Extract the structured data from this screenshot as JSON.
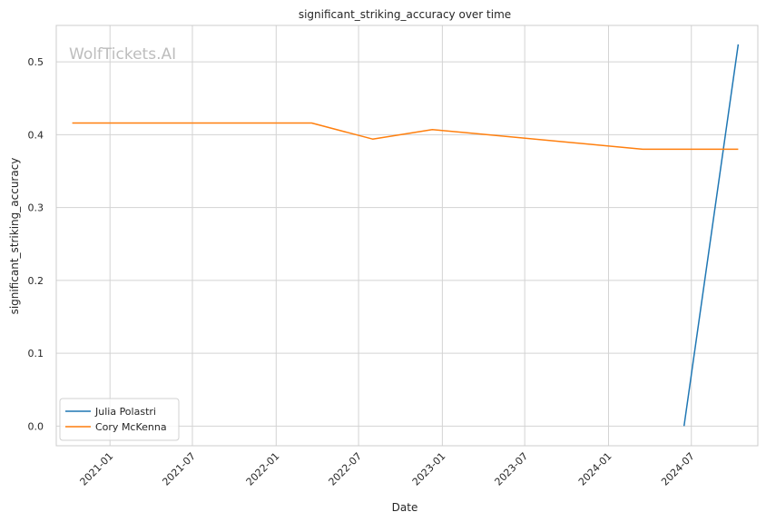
{
  "chart_data": {
    "type": "line",
    "title": "significant_striking_accuracy over time",
    "xlabel": "Date",
    "ylabel": "significant_striking_accuracy",
    "watermark": "WolfTickets.AI",
    "xlim": [
      "2020-09-05",
      "2024-11-24"
    ],
    "ylim": [
      -0.027,
      0.55
    ],
    "x_ticks": [
      "2021-01",
      "2021-07",
      "2022-01",
      "2022-07",
      "2023-01",
      "2023-07",
      "2024-01",
      "2024-07"
    ],
    "y_ticks": [
      0.0,
      0.1,
      0.2,
      0.3,
      0.4,
      0.5
    ],
    "grid": true,
    "legend_position": "lower-left",
    "series": [
      {
        "name": "Julia Polastri",
        "color": "#1f77b4",
        "points": [
          {
            "x": "2024-06-15",
            "y": 0.0
          },
          {
            "x": "2024-10-12",
            "y": 0.524
          }
        ]
      },
      {
        "name": "Cory McKenna",
        "color": "#ff7f0e",
        "points": [
          {
            "x": "2020-10-10",
            "y": 0.416
          },
          {
            "x": "2022-03-20",
            "y": 0.416
          },
          {
            "x": "2022-08-01",
            "y": 0.394
          },
          {
            "x": "2022-12-10",
            "y": 0.407
          },
          {
            "x": "2024-03-16",
            "y": 0.38
          },
          {
            "x": "2024-10-12",
            "y": 0.38
          }
        ]
      }
    ]
  }
}
